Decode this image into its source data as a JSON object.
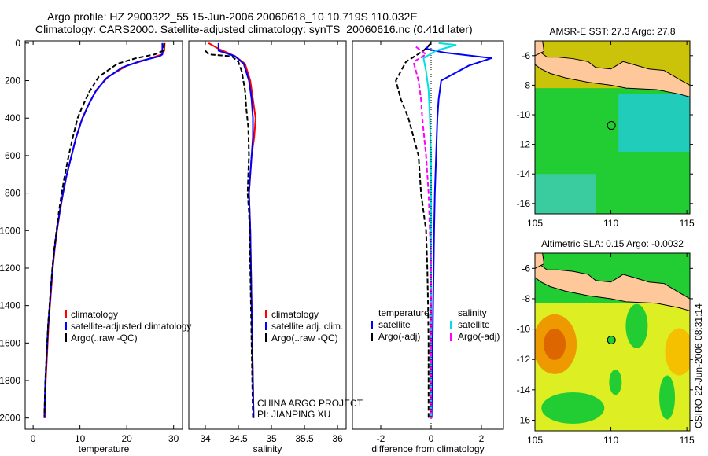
{
  "chart_data": [
    {
      "type": "line",
      "id": "temp",
      "xlabel": "temperature",
      "ylabel": "",
      "xlim": [
        -1.7,
        31.9
      ],
      "ylim": [
        2060,
        -12
      ],
      "xticks": [
        0,
        10,
        20,
        30
      ],
      "yticks": [
        0,
        200,
        400,
        600,
        800,
        1000,
        1200,
        1400,
        1600,
        1800,
        2000
      ],
      "legend": {
        "items": [
          "climatology",
          "satellite-adjusted climatology",
          "Argo(..raw -QC)"
        ]
      },
      "series": [
        {
          "name": "climatology",
          "color": "#ff0000",
          "dash": "",
          "points": [
            [
              28.1,
              0
            ],
            [
              28.0,
              40
            ],
            [
              27.5,
              60
            ],
            [
              24,
              90
            ],
            [
              20,
              120
            ],
            [
              16,
              180
            ],
            [
              13.5,
              250
            ],
            [
              12,
              320
            ],
            [
              10.5,
              400
            ],
            [
              9.2,
              500
            ],
            [
              8.2,
              600
            ],
            [
              7.2,
              700
            ],
            [
              6.4,
              800
            ],
            [
              5.7,
              900
            ],
            [
              5.1,
              1000
            ],
            [
              4.6,
              1100
            ],
            [
              4.2,
              1200
            ],
            [
              3.9,
              1300
            ],
            [
              3.6,
              1400
            ],
            [
              3.3,
              1500
            ],
            [
              3.1,
              1600
            ],
            [
              2.9,
              1700
            ],
            [
              2.7,
              1800
            ],
            [
              2.6,
              1900
            ],
            [
              2.5,
              2000
            ]
          ]
        },
        {
          "name": "satellite-adjusted climatology",
          "color": "#0000ff",
          "dash": "",
          "points": [
            [
              27.6,
              0
            ],
            [
              27.6,
              60
            ],
            [
              27,
              70
            ],
            [
              23,
              95
            ],
            [
              19,
              130
            ],
            [
              15.5,
              190
            ],
            [
              13.3,
              260
            ],
            [
              11.8,
              330
            ],
            [
              10.4,
              410
            ],
            [
              9.1,
              510
            ],
            [
              8.1,
              610
            ],
            [
              7.1,
              710
            ],
            [
              6.3,
              810
            ],
            [
              5.6,
              910
            ],
            [
              5.0,
              1010
            ],
            [
              4.5,
              1110
            ],
            [
              4.1,
              1210
            ],
            [
              3.8,
              1310
            ],
            [
              3.5,
              1410
            ],
            [
              3.2,
              1510
            ],
            [
              3.0,
              1610
            ],
            [
              2.8,
              1710
            ],
            [
              2.6,
              1810
            ],
            [
              2.5,
              1910
            ],
            [
              2.4,
              2000
            ]
          ]
        },
        {
          "name": "Argo(..raw -QC)",
          "color": "#000000",
          "dash": "6,3",
          "points": [
            [
              28.0,
              0
            ],
            [
              27.8,
              40
            ],
            [
              26,
              60
            ],
            [
              22,
              80
            ],
            [
              18,
              110
            ],
            [
              14,
              180
            ],
            [
              12,
              260
            ],
            [
              10.5,
              340
            ],
            [
              9.5,
              400
            ],
            [
              8.5,
              500
            ],
            [
              7.6,
              600
            ],
            [
              6.8,
              700
            ],
            [
              6.1,
              800
            ],
            [
              5.5,
              900
            ],
            [
              5.0,
              1000
            ],
            [
              4.5,
              1100
            ],
            [
              4.1,
              1200
            ],
            [
              3.8,
              1300
            ],
            [
              3.5,
              1400
            ],
            [
              3.2,
              1500
            ],
            [
              3.0,
              1600
            ],
            [
              2.8,
              1700
            ],
            [
              2.6,
              1800
            ],
            [
              2.5,
              1900
            ],
            [
              2.4,
              1990
            ]
          ]
        }
      ]
    },
    {
      "type": "line",
      "id": "sal",
      "xlabel": "salinity",
      "ylabel": "",
      "xlim": [
        33.75,
        36.13
      ],
      "ylim": [
        2060,
        -12
      ],
      "xticks": [
        34,
        34.5,
        35,
        35.5,
        36
      ],
      "yticks": [],
      "legend": {
        "items": [
          "climatology",
          "satellite adj. clim.",
          "Argo(..raw -QC)"
        ]
      },
      "annotation": [
        "CHINA ARGO PROJECT",
        "PI: JIANPING XU"
      ],
      "series": [
        {
          "name": "climatology",
          "color": "#ff0000",
          "dash": "",
          "points": [
            [
              34.05,
              0
            ],
            [
              34.2,
              30
            ],
            [
              34.45,
              70
            ],
            [
              34.6,
              110
            ],
            [
              34.68,
              200
            ],
            [
              34.72,
              300
            ],
            [
              34.76,
              400
            ],
            [
              34.74,
              500
            ],
            [
              34.7,
              600
            ],
            [
              34.68,
              700
            ],
            [
              34.66,
              800
            ],
            [
              34.67,
              900
            ],
            [
              34.68,
              1000
            ],
            [
              34.69,
              1200
            ],
            [
              34.7,
              1400
            ],
            [
              34.71,
              1600
            ],
            [
              34.72,
              1800
            ],
            [
              34.73,
              2000
            ]
          ]
        },
        {
          "name": "satellite adj. clim.",
          "color": "#0000ff",
          "dash": "",
          "points": [
            [
              34.2,
              0
            ],
            [
              34.2,
              40
            ],
            [
              34.45,
              70
            ],
            [
              34.58,
              110
            ],
            [
              34.66,
              200
            ],
            [
              34.7,
              300
            ],
            [
              34.72,
              400
            ],
            [
              34.72,
              500
            ],
            [
              34.7,
              600
            ],
            [
              34.68,
              700
            ],
            [
              34.66,
              800
            ],
            [
              34.67,
              900
            ],
            [
              34.68,
              1000
            ],
            [
              34.69,
              1200
            ],
            [
              34.7,
              1400
            ],
            [
              34.71,
              1600
            ],
            [
              34.72,
              1800
            ],
            [
              34.73,
              2000
            ]
          ]
        },
        {
          "name": "Argo(..raw -QC)",
          "color": "#000000",
          "dash": "6,3",
          "points": [
            [
              34.0,
              40
            ],
            [
              34.05,
              60
            ],
            [
              34.4,
              70
            ],
            [
              34.5,
              100
            ],
            [
              34.55,
              150
            ],
            [
              34.6,
              250
            ],
            [
              34.62,
              350
            ],
            [
              34.65,
              450
            ],
            [
              34.66,
              600
            ],
            [
              34.65,
              700
            ],
            [
              34.64,
              800
            ],
            [
              34.66,
              900
            ],
            [
              34.67,
              1000
            ],
            [
              34.68,
              1200
            ],
            [
              34.69,
              1400
            ],
            [
              34.7,
              1600
            ],
            [
              34.71,
              1800
            ],
            [
              34.72,
              2000
            ]
          ]
        }
      ]
    },
    {
      "type": "line",
      "id": "diff",
      "xlabel": "difference from climatology",
      "ylabel": "",
      "xlim": [
        -3.125,
        2.875
      ],
      "ylim": [
        2060,
        -12
      ],
      "xticks": [
        -2,
        0,
        2
      ],
      "yticks": [],
      "legend": {
        "headers": [
          "temperature",
          "salinity"
        ],
        "items": [
          "satellite",
          "Argo(-adj)",
          "satellite",
          "Argo(-adj)"
        ]
      },
      "series": [
        {
          "name": "temperature satellite",
          "color": "#0000ff",
          "dash": "",
          "points": [
            [
              0,
              0
            ],
            [
              -0.2,
              30
            ],
            [
              0.5,
              50
            ],
            [
              2.4,
              80
            ],
            [
              1.5,
              120
            ],
            [
              0.4,
              200
            ],
            [
              0.3,
              300
            ],
            [
              0.25,
              400
            ],
            [
              0.2,
              600
            ],
            [
              0.15,
              800
            ],
            [
              0.12,
              1000
            ],
            [
              0.1,
              1200
            ],
            [
              0.08,
              1400
            ],
            [
              0.06,
              1600
            ],
            [
              0.04,
              1800
            ],
            [
              0.02,
              2000
            ]
          ]
        },
        {
          "name": "temperature Argo(-adj)",
          "color": "#000000",
          "dash": "6,3",
          "points": [
            [
              0,
              0
            ],
            [
              -0.3,
              40
            ],
            [
              -1.0,
              100
            ],
            [
              -1.4,
              200
            ],
            [
              -1.2,
              300
            ],
            [
              -0.9,
              400
            ],
            [
              -0.7,
              500
            ],
            [
              -0.5,
              600
            ],
            [
              -0.4,
              800
            ],
            [
              -0.2,
              1000
            ],
            [
              -0.15,
              1200
            ],
            [
              -0.12,
              1400
            ],
            [
              -0.1,
              1600
            ],
            [
              -0.1,
              1800
            ],
            [
              -0.1,
              2000
            ]
          ]
        },
        {
          "name": "salinity satellite",
          "color": "#00e0e0",
          "dash": "",
          "points": [
            [
              0.3,
              0
            ],
            [
              1.0,
              10
            ],
            [
              0.2,
              40
            ],
            [
              -0.3,
              80
            ],
            [
              -0.2,
              150
            ],
            [
              -0.1,
              250
            ],
            [
              -0.05,
              400
            ],
            [
              0,
              600
            ],
            [
              0,
              800
            ],
            [
              0,
              1000
            ],
            [
              0,
              1200
            ],
            [
              0,
              1600
            ],
            [
              0,
              2000
            ]
          ]
        },
        {
          "name": "salinity Argo(-adj)",
          "color": "#ff00ff",
          "dash": "6,3",
          "points": [
            [
              -0.6,
              20
            ],
            [
              -0.2,
              60
            ],
            [
              -0.7,
              100
            ],
            [
              -0.5,
              200
            ],
            [
              -0.4,
              300
            ],
            [
              -0.35,
              400
            ],
            [
              -0.2,
              600
            ],
            [
              -0.1,
              800
            ],
            [
              -0.05,
              1000
            ],
            [
              0,
              1200
            ],
            [
              0,
              1600
            ],
            [
              0,
              2000
            ]
          ]
        }
      ]
    },
    {
      "type": "heatmap",
      "id": "sst",
      "title": "AMSR-E SST: 27.3 Argo: 27.8",
      "xlim": [
        105,
        115.2
      ],
      "ylim": [
        -16.7,
        -5
      ],
      "xticks": [
        105,
        110,
        115
      ],
      "yticks": [
        -6,
        -8,
        -10,
        -12,
        -14,
        -16
      ],
      "argo_position": [
        110.03,
        -10.72
      ]
    },
    {
      "type": "heatmap",
      "id": "sla",
      "title": "Altimetric SLA: 0.15 Argo: -0.0032",
      "xlim": [
        105,
        115.2
      ],
      "ylim": [
        -16.7,
        -5
      ],
      "xticks": [
        105,
        110,
        115
      ],
      "yticks": [
        -6,
        -8,
        -10,
        -12,
        -14,
        -16
      ],
      "argo_position": [
        110.03,
        -10.72
      ]
    }
  ],
  "title_line1": "Argo profile: HZ 2900322_55 15-Jun-2006 20060618_10 10.719S 110.032E",
  "title_line2": "Climatology: CARS2000. Satellite-adjusted climatology: synTS_20060616.nc (0.41d later)",
  "stamp": "CSIRO 22-Jun-2006 08:31:14",
  "colors": {
    "land": "#ffc89a",
    "sea_green": "#22cc33",
    "cyan": "#22ccbb",
    "yellow": "#ddee22",
    "orange": "#ee9900"
  }
}
